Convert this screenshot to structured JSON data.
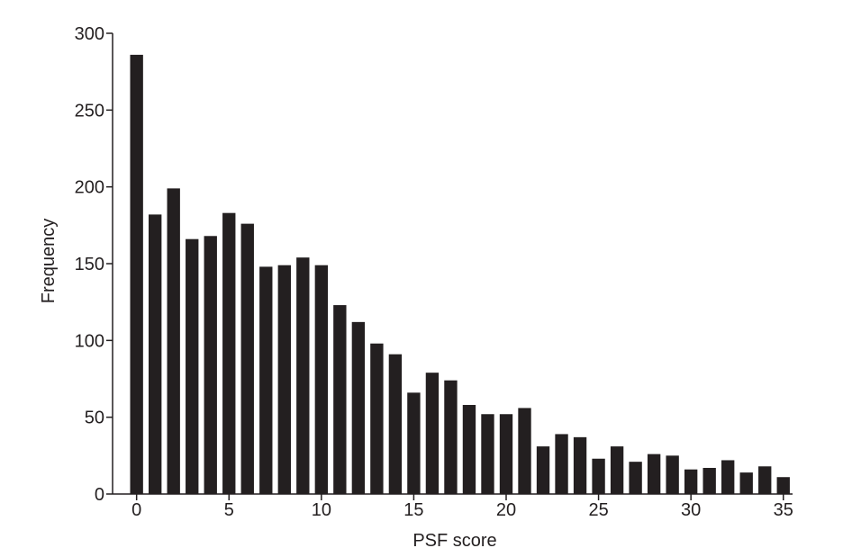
{
  "chart_data": {
    "type": "bar",
    "xlabel": "PSF score",
    "ylabel": "Frequency",
    "color": "#231f20",
    "x": [
      0,
      1,
      2,
      3,
      4,
      5,
      6,
      7,
      8,
      9,
      10,
      11,
      12,
      13,
      14,
      15,
      16,
      17,
      18,
      19,
      20,
      21,
      22,
      23,
      24,
      25,
      26,
      27,
      28,
      29,
      30,
      31,
      32,
      33,
      34,
      35
    ],
    "values": [
      286,
      182,
      199,
      166,
      168,
      183,
      176,
      148,
      149,
      154,
      149,
      123,
      112,
      98,
      91,
      66,
      79,
      74,
      58,
      52,
      52,
      56,
      31,
      39,
      37,
      23,
      31,
      21,
      26,
      25,
      16,
      17,
      22,
      14,
      18,
      11
    ],
    "xlim": [
      -1.3,
      35.5
    ],
    "ylim": [
      0,
      300
    ],
    "xticks": [
      0,
      5,
      10,
      15,
      20,
      25,
      30,
      35
    ],
    "yticks": [
      0,
      50,
      100,
      150,
      200,
      250,
      300
    ]
  }
}
